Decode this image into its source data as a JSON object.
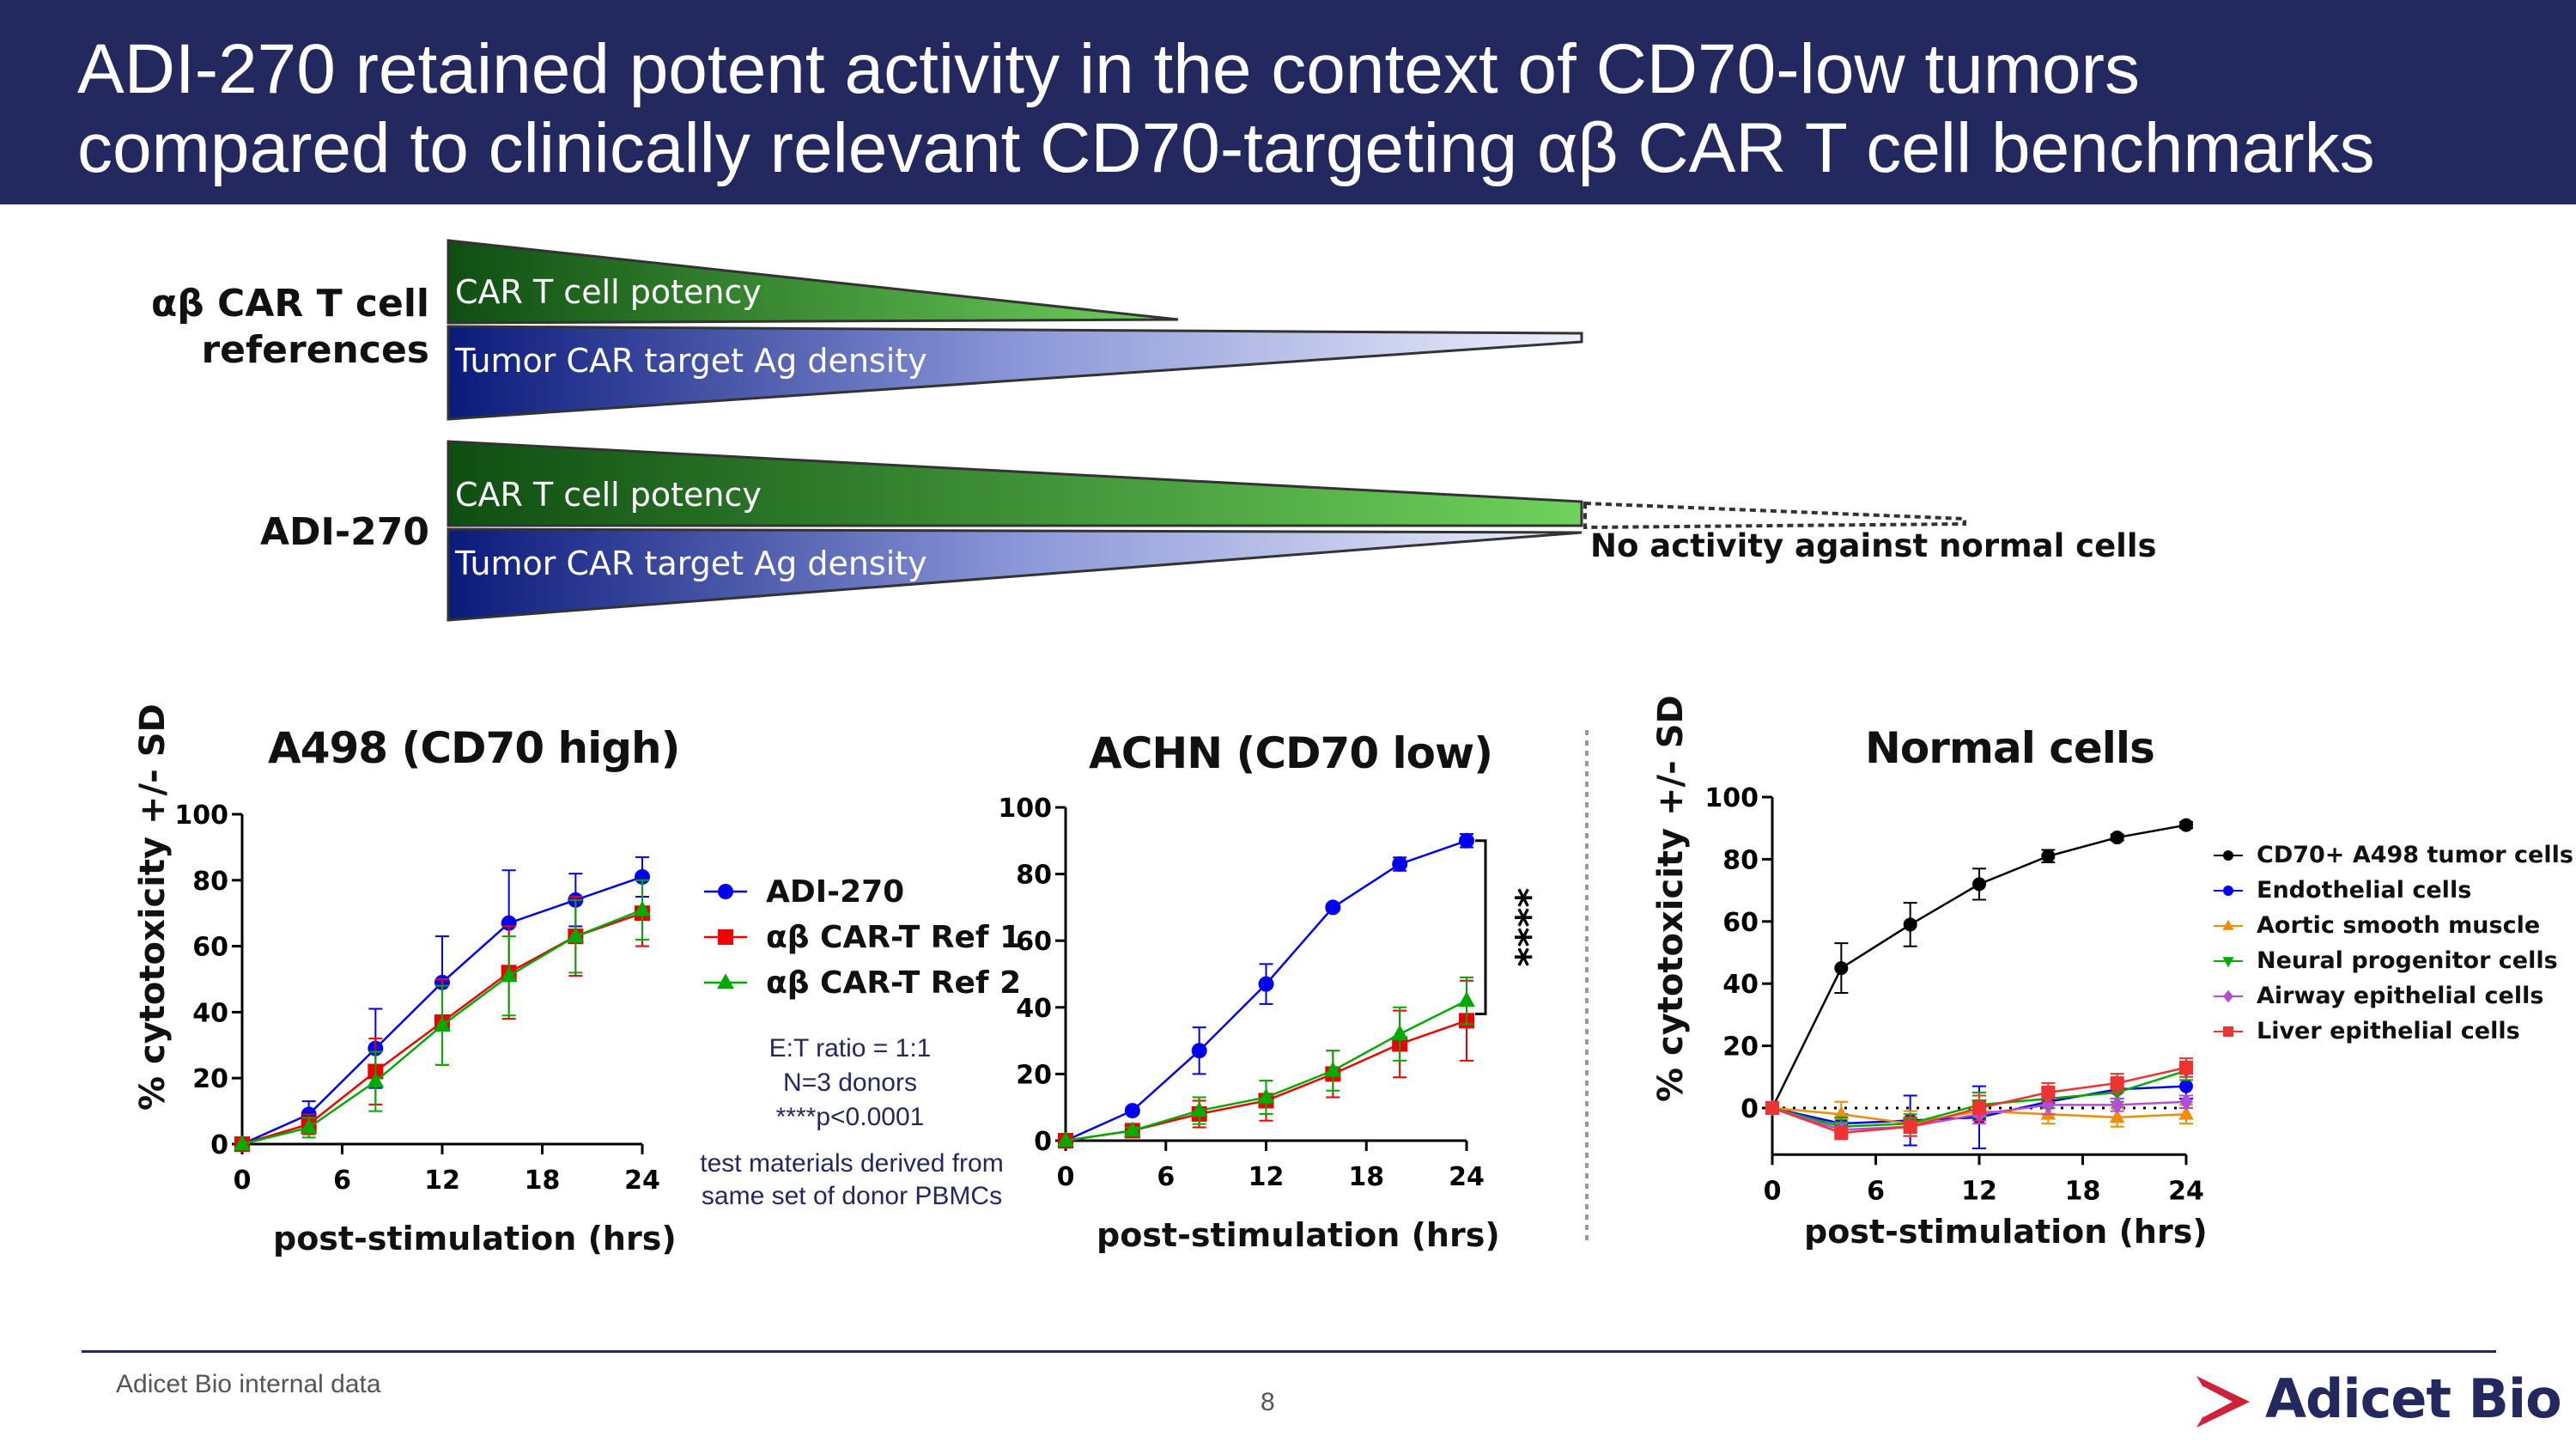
{
  "header": {
    "title_line1": "ADI-270 retained potent activity in the context of CD70-low tumors",
    "title_line2": "compared to clinically relevant CD70-targeting αβ CAR T cell benchmarks",
    "background_color": "#23285e"
  },
  "schematic": {
    "reference_label_line1": "αβ CAR T cell",
    "reference_label_line2": "references",
    "adi_label": "ADI-270",
    "potency_label": "CAR T cell potency",
    "density_label": "Tumor CAR target Ag density",
    "no_activity_label": "No activity against normal cells",
    "potency_color": "#2f8a2f",
    "density_color": "#1a2a8a"
  },
  "notes": {
    "et_ratio": "E:T ratio = 1:1",
    "donors": "N=3 donors",
    "pvalue": "****p<0.0001",
    "materials_line1": "test materials derived from",
    "materials_line2": "same set of donor PBMCs"
  },
  "significance": "****",
  "legend_main": [
    {
      "label": "ADI-270",
      "color": "#0000ee",
      "marker": "circle"
    },
    {
      "label": "αβ CAR-T Ref 1",
      "color": "#ee0000",
      "marker": "square"
    },
    {
      "label": "αβ CAR-T Ref 2",
      "color": "#00aa00",
      "marker": "triangle"
    }
  ],
  "legend_normal": [
    {
      "label": "CD70+ A498 tumor cells",
      "color": "#000000",
      "marker": "circle"
    },
    {
      "label": "Endothelial cells",
      "color": "#0000ee",
      "marker": "circle"
    },
    {
      "label": "Aortic smooth muscle",
      "color": "#f08c00",
      "marker": "triangle"
    },
    {
      "label": "Neural progenitor cells",
      "color": "#00aa00",
      "marker": "triangle-down"
    },
    {
      "label": "Airway epithelial cells",
      "color": "#b050d0",
      "marker": "diamond"
    },
    {
      "label": "Liver epithelial cells",
      "color": "#ee3333",
      "marker": "square"
    }
  ],
  "chart_data": [
    {
      "type": "line",
      "title": "A498 (CD70 high)",
      "xlabel": "post-stimulation (hrs)",
      "ylabel": "% cytotoxicity +/- SD",
      "x": [
        0,
        4,
        8,
        12,
        16,
        20,
        24
      ],
      "xticks": [
        "0",
        "6",
        "12",
        "18",
        "24"
      ],
      "yticks": [
        "0",
        "20",
        "40",
        "60",
        "80",
        "100"
      ],
      "xlim": [
        0,
        24
      ],
      "ylim": [
        0,
        100
      ],
      "series": [
        {
          "name": "ADI-270",
          "color": "#0000ee",
          "marker": "circle",
          "values": [
            0,
            9,
            29,
            49,
            67,
            74,
            81
          ],
          "errors": [
            0,
            4,
            12,
            14,
            16,
            8,
            6
          ]
        },
        {
          "name": "αβ CAR-T Ref 1",
          "color": "#ee0000",
          "marker": "square",
          "values": [
            0,
            6,
            22,
            37,
            52,
            63,
            70
          ],
          "errors": [
            0,
            3,
            10,
            13,
            14,
            12,
            10
          ]
        },
        {
          "name": "αβ CAR-T Ref 2",
          "color": "#00aa00",
          "marker": "triangle",
          "values": [
            0,
            5,
            19,
            36,
            51,
            63,
            71
          ],
          "errors": [
            0,
            3,
            9,
            12,
            12,
            11,
            9
          ]
        }
      ]
    },
    {
      "type": "line",
      "title": "ACHN (CD70 low)",
      "xlabel": "post-stimulation (hrs)",
      "ylabel": "",
      "x": [
        0,
        4,
        8,
        12,
        16,
        20,
        24
      ],
      "xticks": [
        "0",
        "6",
        "12",
        "18",
        "24"
      ],
      "yticks": [
        "0",
        "20",
        "40",
        "60",
        "80",
        "100"
      ],
      "xlim": [
        0,
        24
      ],
      "ylim": [
        0,
        100
      ],
      "series": [
        {
          "name": "ADI-270",
          "color": "#0000ee",
          "marker": "circle",
          "values": [
            0,
            9,
            27,
            47,
            70,
            83,
            90
          ],
          "errors": [
            0,
            1,
            7,
            6,
            1,
            2,
            2
          ]
        },
        {
          "name": "αβ CAR-T Ref 1",
          "color": "#ee0000",
          "marker": "square",
          "values": [
            0,
            3,
            8,
            12,
            20,
            29,
            36
          ],
          "errors": [
            0,
            1,
            4,
            6,
            7,
            10,
            12
          ]
        },
        {
          "name": "αβ CAR-T Ref 2",
          "color": "#00aa00",
          "marker": "triangle",
          "values": [
            0,
            3,
            9,
            13,
            21,
            32,
            42
          ],
          "errors": [
            0,
            1,
            4,
            5,
            6,
            8,
            7
          ]
        }
      ]
    },
    {
      "type": "line",
      "title": "Normal cells",
      "xlabel": "post-stimulation (hrs)",
      "ylabel": "% cytotoxicity +/- SD",
      "x": [
        0,
        4,
        8,
        12,
        16,
        20,
        24
      ],
      "xticks": [
        "0",
        "6",
        "12",
        "18",
        "24"
      ],
      "yticks": [
        "0",
        "20",
        "40",
        "60",
        "80",
        "100"
      ],
      "xlim": [
        0,
        24
      ],
      "ylim": [
        -15,
        100
      ],
      "series": [
        {
          "name": "CD70+ A498 tumor cells",
          "color": "#000000",
          "marker": "circle",
          "values": [
            0,
            45,
            59,
            72,
            81,
            87,
            91
          ],
          "errors": [
            0,
            8,
            7,
            5,
            2,
            1,
            1
          ]
        },
        {
          "name": "Endothelial cells",
          "color": "#0000ee",
          "marker": "circle",
          "values": [
            0,
            -5,
            -4,
            -3,
            2,
            6,
            7
          ],
          "errors": [
            0,
            3,
            8,
            10,
            4,
            3,
            4
          ]
        },
        {
          "name": "Aortic smooth muscle",
          "color": "#f08c00",
          "marker": "triangle",
          "values": [
            0,
            -2,
            -5,
            -1,
            -2,
            -3,
            -2
          ],
          "errors": [
            0,
            4,
            4,
            3,
            3,
            3,
            3
          ]
        },
        {
          "name": "Neural progenitor cells",
          "color": "#00aa00",
          "marker": "triangle-down",
          "values": [
            0,
            -6,
            -5,
            1,
            3,
            5,
            12
          ],
          "errors": [
            0,
            3,
            3,
            4,
            3,
            3,
            3
          ]
        },
        {
          "name": "Airway epithelial cells",
          "color": "#b050d0",
          "marker": "diamond",
          "values": [
            0,
            -7,
            -6,
            -2,
            1,
            1,
            2
          ],
          "errors": [
            0,
            2,
            3,
            3,
            3,
            2,
            2
          ]
        },
        {
          "name": "Liver epithelial cells",
          "color": "#ee3333",
          "marker": "square",
          "values": [
            0,
            -8,
            -6,
            0,
            5,
            8,
            13
          ],
          "errors": [
            0,
            2,
            3,
            4,
            3,
            3,
            3
          ]
        }
      ]
    }
  ],
  "footer": {
    "source": "Adicet Bio internal data",
    "page_number": "8",
    "logo_text": "Adicet Bio",
    "logo_color": "#d0213b"
  }
}
